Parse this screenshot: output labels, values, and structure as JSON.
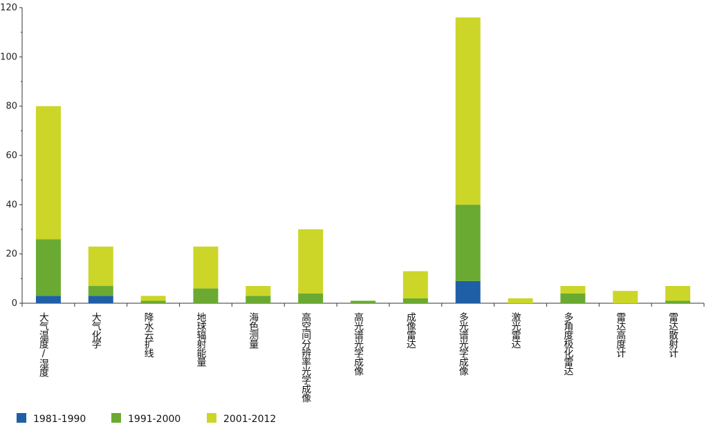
{
  "chart_data": {
    "type": "bar",
    "stacked": true,
    "categories": [
      "大气温度/湿度",
      "大气化学",
      "降水云扩线",
      "地球辐射能量",
      "海色测量",
      "高空间分辨率光学成像",
      "高光谱光学成像",
      "成像雷达",
      "多光谱光学成像",
      "激光雷达",
      "多角度极化雷达",
      "雷达高度计",
      "雷达散射计"
    ],
    "series": [
      {
        "name": "1981-1990",
        "color": "#1f5fa6",
        "values": [
          3,
          3,
          0,
          0,
          0,
          0,
          0,
          0,
          9,
          0,
          0,
          0,
          0
        ]
      },
      {
        "name": "1991-2000",
        "color": "#6aaa32",
        "values": [
          23,
          4,
          1,
          6,
          3,
          4,
          1,
          2,
          31,
          0,
          4,
          0,
          1
        ]
      },
      {
        "name": "2001-2012",
        "color": "#cbd628",
        "values": [
          54,
          16,
          2,
          17,
          4,
          26,
          0,
          11,
          76,
          2,
          3,
          5,
          6
        ]
      }
    ],
    "yticks": [
      "0",
      "20",
      "40",
      "60",
      "80",
      "100",
      "120"
    ],
    "ylim": [
      0,
      120
    ],
    "legend_position": "bottom-left",
    "grid": false
  }
}
